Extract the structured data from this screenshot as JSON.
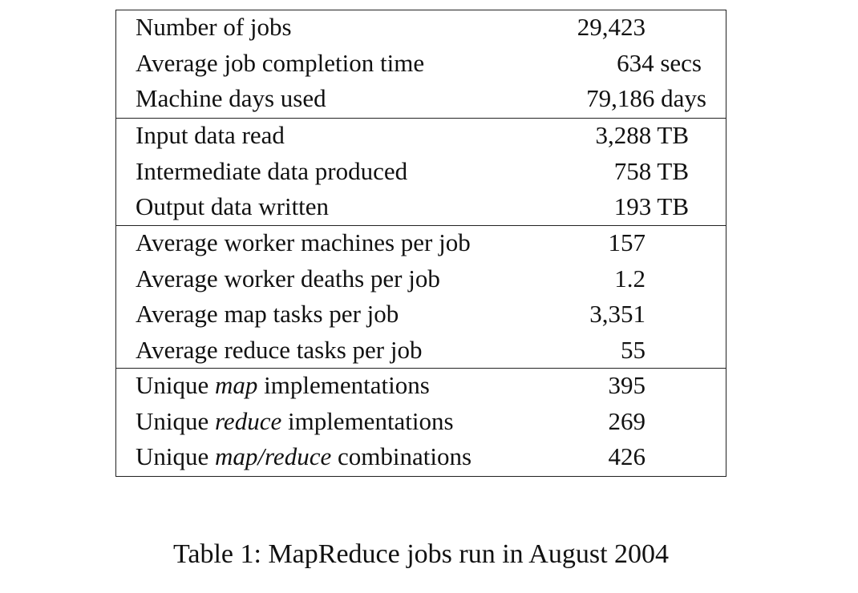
{
  "table": {
    "groups": [
      {
        "rows": [
          {
            "label_parts": [
              "Number of jobs"
            ],
            "value": "29,423"
          },
          {
            "label_parts": [
              "Average job completion time"
            ],
            "value": "634 secs"
          },
          {
            "label_parts": [
              "Machine days used"
            ],
            "value": "79,186 days"
          }
        ]
      },
      {
        "rows": [
          {
            "label_parts": [
              "Input data read"
            ],
            "value": "3,288 TB"
          },
          {
            "label_parts": [
              "Intermediate data produced"
            ],
            "value": "758 TB"
          },
          {
            "label_parts": [
              "Output data written"
            ],
            "value": "193 TB"
          }
        ]
      },
      {
        "rows": [
          {
            "label_parts": [
              "Average worker machines per job"
            ],
            "value": "157"
          },
          {
            "label_parts": [
              "Average worker deaths per job"
            ],
            "value": "1.2"
          },
          {
            "label_parts": [
              "Average map tasks per job"
            ],
            "value": "3,351"
          },
          {
            "label_parts": [
              "Average reduce tasks per job"
            ],
            "value": "55"
          }
        ]
      },
      {
        "rows": [
          {
            "label_parts": [
              "Unique ",
              "map",
              " implementations"
            ],
            "value": "395"
          },
          {
            "label_parts": [
              "Unique ",
              "reduce",
              " implementations"
            ],
            "value": "269"
          },
          {
            "label_parts": [
              "Unique ",
              "map/reduce",
              " combinations"
            ],
            "value": "426"
          }
        ]
      }
    ]
  },
  "caption": "Table 1: MapReduce jobs run in August 2004"
}
